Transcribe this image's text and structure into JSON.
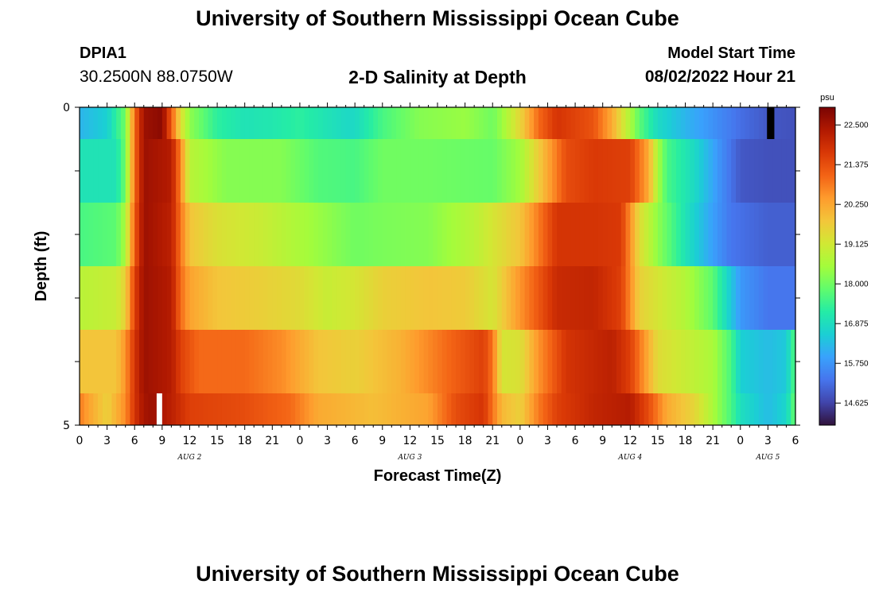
{
  "header": {
    "title": "University of Southern Mississippi Ocean Cube",
    "station_id": "DPIA1",
    "coordinates": "30.2500N  88.0750W",
    "model_start_label": "Model Start Time",
    "model_start_value": "08/02/2022 Hour 21"
  },
  "footer": {
    "title": "University of Southern Mississippi Ocean Cube"
  },
  "colors": {
    "colormap": [
      "#30123b",
      "#4145ab",
      "#4675ed",
      "#39a2fc",
      "#1bcfd4",
      "#24eca6",
      "#61fc6c",
      "#a4fc3b",
      "#d1e834",
      "#f3c63a",
      "#fe9b2d",
      "#f36315",
      "#d93806",
      "#b11901",
      "#7a0403"
    ],
    "missing_white": "#ffffff",
    "missing_black": "#000000"
  },
  "chart_data": {
    "type": "heatmap",
    "title": "2-D Salinity at Depth",
    "xlabel": "Forecast Time(Z)",
    "ylabel": "Depth (ft)",
    "colorbar_unit": "psu",
    "colorbar_ticks": [
      "22.500",
      "21.375",
      "20.250",
      "19.125",
      "18.000",
      "16.875",
      "15.750",
      "14.625"
    ],
    "colorbar_range": [
      14.0,
      23.0
    ],
    "xlim": [
      0,
      78
    ],
    "ylim": [
      5,
      0
    ],
    "x_tick_labels": [
      "0",
      "3",
      "6",
      "9",
      "12",
      "15",
      "18",
      "21",
      "0",
      "3",
      "6",
      "9",
      "12",
      "15",
      "18",
      "21",
      "0",
      "3",
      "6",
      "9",
      "12",
      "15",
      "18",
      "21",
      "0",
      "3",
      "6"
    ],
    "date_labels": [
      {
        "text": "AUG 2",
        "at_hour": 12
      },
      {
        "text": "AUG 3",
        "at_hour": 36
      },
      {
        "text": "AUG 4",
        "at_hour": 60
      },
      {
        "text": "AUG 5",
        "at_hour": 75
      }
    ],
    "y_tick_labels": [
      {
        "text": "0",
        "depth": 0
      },
      {
        "text": "5",
        "depth": 5
      }
    ],
    "rows": [
      {
        "depth_top": 0.0,
        "depth_bottom": 0.5,
        "anchors": [
          [
            0,
            16.2
          ],
          [
            3,
            16.6
          ],
          [
            5,
            18.0
          ],
          [
            6,
            21.0
          ],
          [
            7,
            22.6
          ],
          [
            9,
            22.8
          ],
          [
            10,
            21.2
          ],
          [
            11,
            19.4
          ],
          [
            12,
            18.3
          ],
          [
            15,
            17.3
          ],
          [
            18,
            17.0
          ],
          [
            21,
            17.1
          ],
          [
            24,
            17.3
          ],
          [
            27,
            17.0
          ],
          [
            29,
            16.8
          ],
          [
            30,
            16.8
          ],
          [
            33,
            17.6
          ],
          [
            37,
            18.2
          ],
          [
            42,
            18.4
          ],
          [
            45,
            18.0
          ],
          [
            46,
            18.4
          ],
          [
            48,
            19.5
          ],
          [
            50,
            21.0
          ],
          [
            52,
            21.8
          ],
          [
            56,
            21.3
          ],
          [
            58,
            20.2
          ],
          [
            61,
            17.8
          ],
          [
            63,
            16.8
          ],
          [
            66,
            16.2
          ],
          [
            69,
            15.7
          ],
          [
            72,
            15.2
          ],
          [
            75,
            14.9
          ],
          [
            78,
            14.8
          ]
        ],
        "missing": [
          {
            "type": "black",
            "x0": 74.9,
            "x1": 75.7
          }
        ]
      },
      {
        "depth_top": 0.5,
        "depth_bottom": 1.5,
        "anchors": [
          [
            0,
            17.0
          ],
          [
            4,
            17.0
          ],
          [
            5,
            18.0
          ],
          [
            6,
            21.0
          ],
          [
            7,
            22.6
          ],
          [
            10,
            22.3
          ],
          [
            11,
            20.7
          ],
          [
            12,
            18.8
          ],
          [
            16,
            18.2
          ],
          [
            22,
            18.2
          ],
          [
            26,
            17.7
          ],
          [
            30,
            17.6
          ],
          [
            33,
            18.0
          ],
          [
            38,
            18.0
          ],
          [
            45,
            17.9
          ],
          [
            48,
            18.5
          ],
          [
            53,
            21.4
          ],
          [
            56,
            21.7
          ],
          [
            60,
            21.6
          ],
          [
            62,
            20.2
          ],
          [
            63,
            18.6
          ],
          [
            64,
            17.6
          ],
          [
            67,
            16.8
          ],
          [
            70,
            15.6
          ],
          [
            72,
            14.9
          ],
          [
            75,
            14.8
          ],
          [
            78,
            14.8
          ]
        ],
        "missing": []
      },
      {
        "depth_top": 1.5,
        "depth_bottom": 2.5,
        "anchors": [
          [
            0,
            17.6
          ],
          [
            4,
            17.8
          ],
          [
            5,
            18.6
          ],
          [
            6,
            21.2
          ],
          [
            7,
            22.6
          ],
          [
            10,
            22.2
          ],
          [
            11,
            20.9
          ],
          [
            12,
            19.8
          ],
          [
            15,
            19.3
          ],
          [
            20,
            19.0
          ],
          [
            24,
            18.6
          ],
          [
            27,
            18.3
          ],
          [
            30,
            18.0
          ],
          [
            33,
            18.1
          ],
          [
            38,
            18.2
          ],
          [
            43,
            18.8
          ],
          [
            48,
            19.8
          ],
          [
            52,
            21.8
          ],
          [
            56,
            21.8
          ],
          [
            59,
            21.7
          ],
          [
            61,
            19.4
          ],
          [
            63,
            18.3
          ],
          [
            66,
            17.0
          ],
          [
            69,
            15.9
          ],
          [
            71,
            15.3
          ],
          [
            75,
            15.0
          ],
          [
            78,
            15.0
          ]
        ],
        "missing": []
      },
      {
        "depth_top": 2.5,
        "depth_bottom": 3.5,
        "anchors": [
          [
            0,
            18.8
          ],
          [
            4,
            19.0
          ],
          [
            5,
            19.6
          ],
          [
            6,
            21.6
          ],
          [
            7,
            22.6
          ],
          [
            10,
            22.3
          ],
          [
            11,
            21.0
          ],
          [
            12,
            20.3
          ],
          [
            15,
            19.8
          ],
          [
            20,
            19.6
          ],
          [
            24,
            19.4
          ],
          [
            27,
            19.0
          ],
          [
            30,
            19.2
          ],
          [
            33,
            19.6
          ],
          [
            38,
            19.8
          ],
          [
            42,
            19.7
          ],
          [
            45,
            19.2
          ],
          [
            48,
            20.5
          ],
          [
            52,
            22.0
          ],
          [
            56,
            22.1
          ],
          [
            59,
            21.6
          ],
          [
            61,
            19.6
          ],
          [
            63,
            19.2
          ],
          [
            66,
            18.7
          ],
          [
            69,
            17.8
          ],
          [
            72,
            15.8
          ],
          [
            75,
            15.3
          ],
          [
            78,
            15.3
          ]
        ],
        "missing": []
      },
      {
        "depth_top": 3.5,
        "depth_bottom": 4.5,
        "anchors": [
          [
            0,
            19.8
          ],
          [
            4,
            19.8
          ],
          [
            5,
            20.5
          ],
          [
            6,
            21.8
          ],
          [
            7,
            22.6
          ],
          [
            10,
            22.3
          ],
          [
            11,
            21.6
          ],
          [
            13,
            21.0
          ],
          [
            18,
            21.0
          ],
          [
            22,
            20.6
          ],
          [
            26,
            19.8
          ],
          [
            30,
            19.6
          ],
          [
            35,
            20.1
          ],
          [
            40,
            21.0
          ],
          [
            44,
            21.6
          ],
          [
            45,
            20.9
          ],
          [
            46,
            19.2
          ],
          [
            48,
            19.3
          ],
          [
            50,
            20.5
          ],
          [
            53,
            21.8
          ],
          [
            58,
            22.2
          ],
          [
            60,
            21.6
          ],
          [
            63,
            19.4
          ],
          [
            66,
            19.0
          ],
          [
            69,
            18.6
          ],
          [
            71,
            17.6
          ],
          [
            72,
            16.6
          ],
          [
            75,
            16.3
          ],
          [
            77,
            16.5
          ],
          [
            78,
            17.8
          ]
        ],
        "missing": []
      },
      {
        "depth_top": 4.5,
        "depth_bottom": 5.0,
        "anchors": [
          [
            0,
            20.8
          ],
          [
            1,
            20.3
          ],
          [
            3,
            19.6
          ],
          [
            5,
            20.6
          ],
          [
            6,
            21.8
          ],
          [
            7,
            22.5
          ],
          [
            8,
            22.6
          ],
          [
            10,
            22.2
          ],
          [
            12,
            21.6
          ],
          [
            18,
            21.4
          ],
          [
            23,
            21.0
          ],
          [
            26,
            20.2
          ],
          [
            32,
            19.9
          ],
          [
            38,
            20.3
          ],
          [
            41,
            21.4
          ],
          [
            44,
            21.8
          ],
          [
            46,
            20.0
          ],
          [
            48,
            19.6
          ],
          [
            50,
            20.8
          ],
          [
            52,
            21.6
          ],
          [
            56,
            22.1
          ],
          [
            60,
            22.3
          ],
          [
            62,
            21.4
          ],
          [
            64,
            20.2
          ],
          [
            67,
            19.5
          ],
          [
            69,
            18.6
          ],
          [
            71,
            17.6
          ],
          [
            72,
            16.9
          ],
          [
            75,
            16.3
          ],
          [
            77,
            16.7
          ],
          [
            78,
            18.0
          ]
        ],
        "missing": [
          {
            "type": "white",
            "x0": 8.4,
            "x1": 9.0
          }
        ]
      }
    ]
  }
}
